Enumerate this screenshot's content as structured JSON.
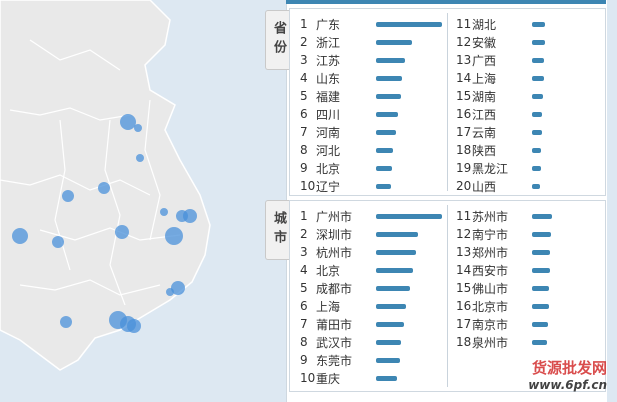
{
  "provinces_tab": "省份",
  "cities_tab": "城市",
  "accent_color": "#3d86b3",
  "provinces": {
    "left": [
      {
        "rank": "1",
        "name": "广东",
        "value": 1.0
      },
      {
        "rank": "2",
        "name": "浙江",
        "value": 0.55
      },
      {
        "rank": "3",
        "name": "江苏",
        "value": 0.44
      },
      {
        "rank": "4",
        "name": "山东",
        "value": 0.4
      },
      {
        "rank": "5",
        "name": "福建",
        "value": 0.38
      },
      {
        "rank": "6",
        "name": "四川",
        "value": 0.33
      },
      {
        "rank": "7",
        "name": "河南",
        "value": 0.3
      },
      {
        "rank": "8",
        "name": "河北",
        "value": 0.26
      },
      {
        "rank": "9",
        "name": "北京",
        "value": 0.24
      },
      {
        "rank": "10",
        "name": "辽宁",
        "value": 0.22
      }
    ],
    "right": [
      {
        "rank": "11",
        "name": "湖北",
        "value": 0.2
      },
      {
        "rank": "12",
        "name": "安徽",
        "value": 0.19
      },
      {
        "rank": "13",
        "name": "广西",
        "value": 0.18
      },
      {
        "rank": "14",
        "name": "上海",
        "value": 0.18
      },
      {
        "rank": "15",
        "name": "湖南",
        "value": 0.17
      },
      {
        "rank": "16",
        "name": "江西",
        "value": 0.15
      },
      {
        "rank": "17",
        "name": "云南",
        "value": 0.15
      },
      {
        "rank": "18",
        "name": "陕西",
        "value": 0.14
      },
      {
        "rank": "19",
        "name": "黑龙江",
        "value": 0.13
      },
      {
        "rank": "20",
        "name": "山西",
        "value": 0.12
      }
    ]
  },
  "cities": {
    "left": [
      {
        "rank": "1",
        "name": "广州市",
        "value": 1.0
      },
      {
        "rank": "2",
        "name": "深圳市",
        "value": 0.64
      },
      {
        "rank": "3",
        "name": "杭州市",
        "value": 0.6
      },
      {
        "rank": "4",
        "name": "北京",
        "value": 0.56
      },
      {
        "rank": "5",
        "name": "成都市",
        "value": 0.52
      },
      {
        "rank": "6",
        "name": "上海",
        "value": 0.46
      },
      {
        "rank": "7",
        "name": "莆田市",
        "value": 0.42
      },
      {
        "rank": "8",
        "name": "武汉市",
        "value": 0.38
      },
      {
        "rank": "9",
        "name": "东莞市",
        "value": 0.36
      },
      {
        "rank": "10",
        "name": "重庆",
        "value": 0.32
      }
    ],
    "right": [
      {
        "rank": "11",
        "name": "苏州市",
        "value": 0.3
      },
      {
        "rank": "12",
        "name": "南宁市",
        "value": 0.29
      },
      {
        "rank": "13",
        "name": "郑州市",
        "value": 0.28
      },
      {
        "rank": "14",
        "name": "西安市",
        "value": 0.27
      },
      {
        "rank": "15",
        "name": "佛山市",
        "value": 0.26
      },
      {
        "rank": "16",
        "name": "北京市",
        "value": 0.25
      },
      {
        "rank": "17",
        "name": "南京市",
        "value": 0.24
      },
      {
        "rank": "18",
        "name": "泉州市",
        "value": 0.23
      }
    ]
  },
  "watermark": {
    "title": "货源批发网",
    "url": "www.6pf.cn"
  }
}
